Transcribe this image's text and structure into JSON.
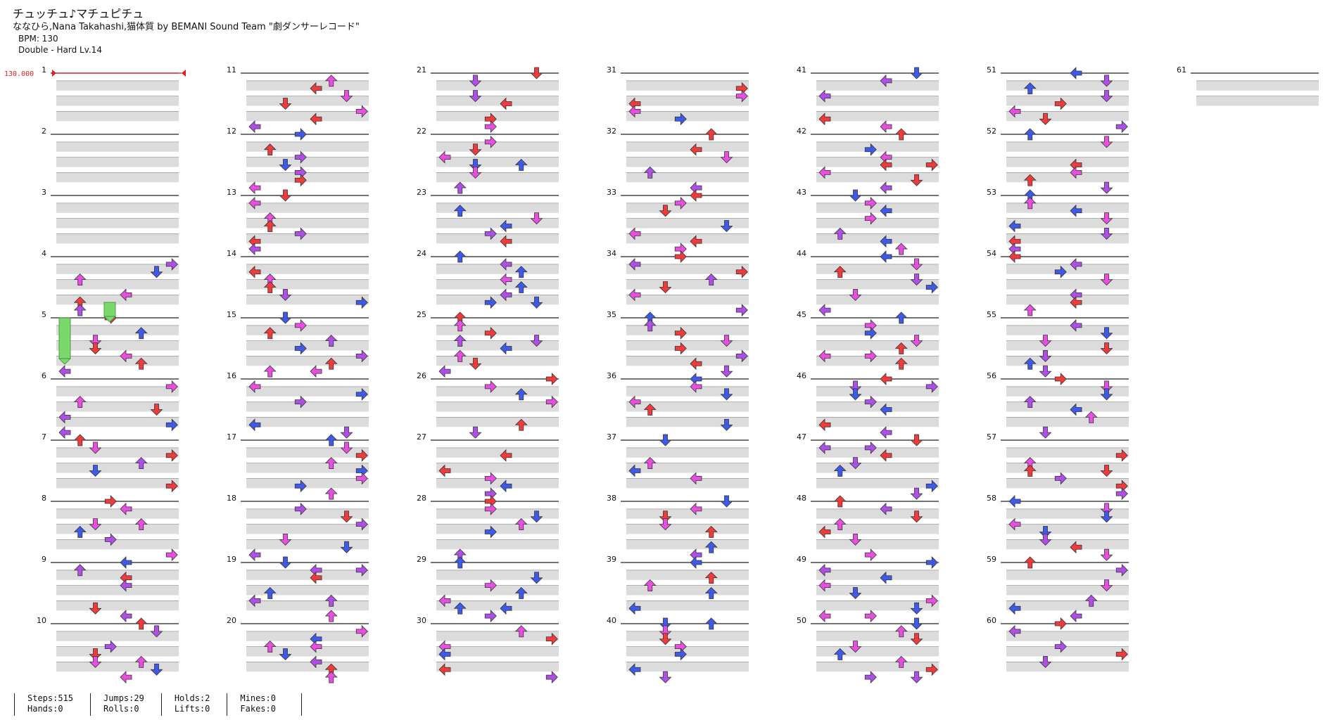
{
  "song": {
    "title": "チュッチュ♪マチュピチュ",
    "artist": "ななひら,Nana Takahashi,猫体質 by BEMANI Sound Team \"劇ダンサーレコード\"",
    "bpm_text": "BPM: 130",
    "difficulty_text": "Double - Hard  Lv.14"
  },
  "bpm_marker": "130.000",
  "measure_count": 61,
  "measures_per_column": 10,
  "colors": {
    "note_red": "#ef3b3b",
    "note_blue": "#3f5ae8",
    "note_magenta": "#e84fe0",
    "note_purple": "#b04fe8",
    "hold_green": "#7bd86b",
    "beat_band": "#dcdcdc",
    "bpm_line": "#e02020"
  },
  "stats": [
    {
      "label": "Steps:515",
      "label2": "Hands:0"
    },
    {
      "label": "Jumps:29",
      "label2": "Rolls:0"
    },
    {
      "label": "Holds:2",
      "label2": "Lifts:0"
    },
    {
      "label": "Mines:0",
      "label2": "Fakes:0"
    }
  ]
}
